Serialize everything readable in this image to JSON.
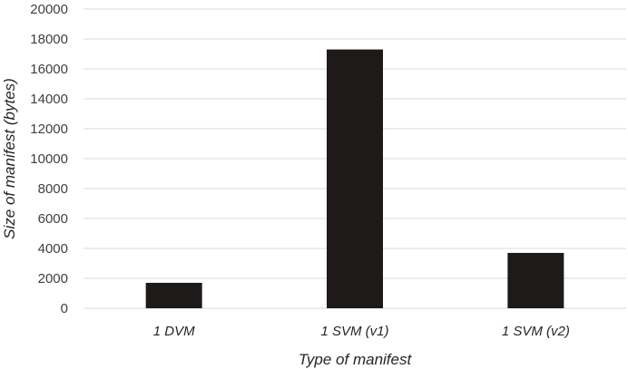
{
  "chart_data": {
    "type": "bar",
    "categories": [
      "1 DVM",
      "1 SVM (v1)",
      "1 SVM (v2)"
    ],
    "values": [
      1700,
      17300,
      3700
    ],
    "title": "",
    "xlabel": "Type of manifest",
    "ylabel": "Size of manifest (bytes)",
    "ylim": [
      0,
      20000
    ],
    "yticks": [
      0,
      2000,
      4000,
      6000,
      8000,
      10000,
      12000,
      14000,
      16000,
      18000,
      20000
    ],
    "grid": true,
    "legend": "none",
    "bar_color": "#1e1a1a",
    "grid_color": "#d9d9d9"
  }
}
